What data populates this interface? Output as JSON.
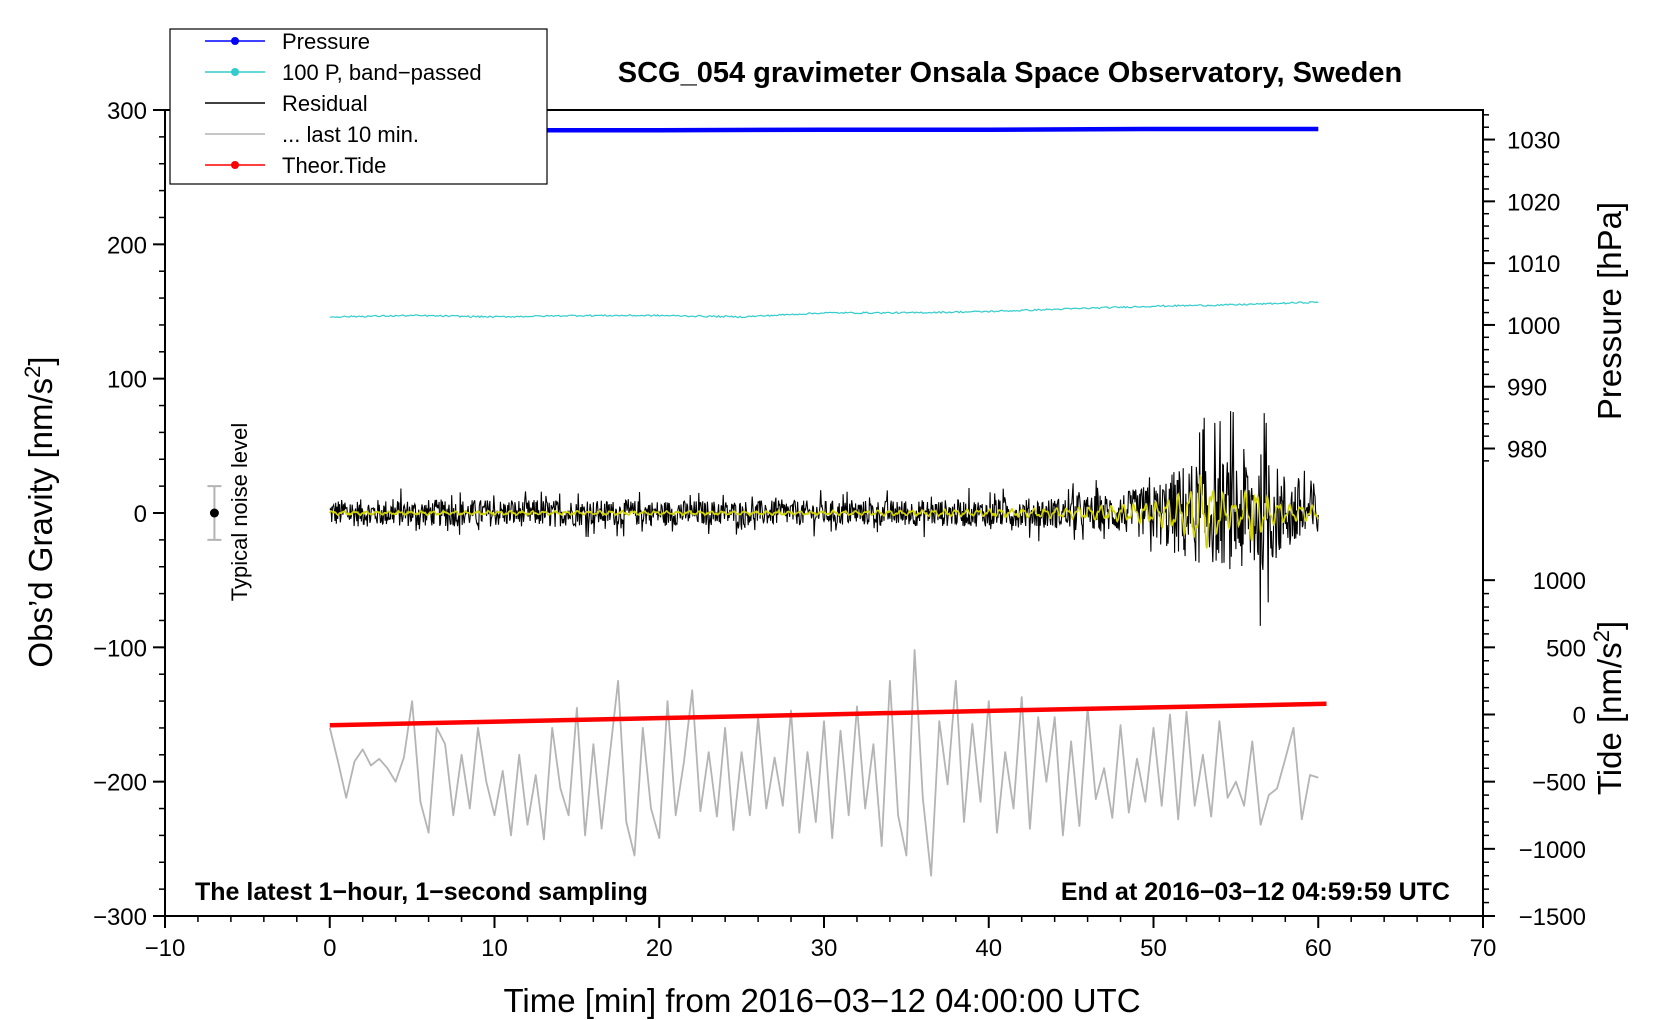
{
  "chart_data": {
    "type": "line",
    "title": "SCG_054 gravimeter Onsala Space Observatory, Sweden",
    "xlabel": "Time [min] from 2016−03−12 04:00:00 UTC",
    "ylabel_main": "Obs’d Gravity [nm/s",
    "ylabel_pressure": "Pressure [hPa]",
    "ylabel_tide": "Tide [nm/s",
    "unit_superscript": "2",
    "unit_close": "]",
    "xlim": [
      -10,
      70
    ],
    "ylim": [
      -300,
      300
    ],
    "x_ticks": [
      -10,
      0,
      10,
      20,
      30,
      40,
      50,
      60,
      70
    ],
    "x_tick_labels": [
      "−10",
      "0",
      "10",
      "20",
      "30",
      "40",
      "50",
      "60",
      "70"
    ],
    "y_ticks": [
      -300,
      -200,
      -100,
      0,
      100,
      200,
      300
    ],
    "y_tick_labels": [
      "−300",
      "−200",
      "−100",
      "0",
      "100",
      "200",
      "300"
    ],
    "pressure_axis": {
      "ticks": [
        980,
        990,
        1000,
        1010,
        1020,
        1030
      ],
      "tick_labels": [
        "980",
        "990",
        "1000",
        "1010",
        "1020",
        "1030"
      ],
      "gravity_at_1000": 140,
      "gravity_per_hPa": 4.6
    },
    "tide_axis": {
      "ticks": [
        -1500,
        -1000,
        -500,
        0,
        500,
        1000
      ],
      "tick_labels": [
        "−1500",
        "−1000",
        "−500",
        "0",
        "500",
        "1000"
      ],
      "gravity_at_0": -150,
      "gravity_per_unit": 0.1
    },
    "legend": [
      {
        "label": "Pressure",
        "color": "#0000ff",
        "marker": true
      },
      {
        "label": "100 P, band−passed",
        "color": "#33cccc",
        "marker": true
      },
      {
        "label": "Residual",
        "color": "#000000",
        "marker": false
      },
      {
        "label": "... last 10 min.",
        "color": "#b4b4b4",
        "marker": false
      },
      {
        "label": "Theor.Tide",
        "color": "#ff0000",
        "marker": true
      }
    ],
    "annotations": {
      "left": "The latest 1−hour, 1−second sampling",
      "right": "End at 2016−03−12 04:59:59 UTC",
      "noise": "Typical noise level"
    },
    "noise_bar": {
      "x": -7,
      "center": 0,
      "half_range": 20
    },
    "series": [
      {
        "name": "Pressure",
        "color": "#0000ff",
        "x": [
          0,
          10,
          20,
          30,
          40,
          50,
          60
        ],
        "y": [
          1031.5,
          1031.5,
          1031.5,
          1031.6,
          1031.6,
          1031.7,
          1031.7
        ]
      },
      {
        "name": "100 P, band-passed",
        "color": "#33cccc",
        "x": [
          0,
          5,
          10,
          15,
          20,
          25,
          30,
          35,
          40,
          45,
          50,
          55,
          60
        ],
        "y": [
          146,
          147,
          146,
          147,
          147,
          146,
          149,
          149,
          150,
          152,
          154,
          155,
          157
        ]
      },
      {
        "name": "Residual",
        "color": "#000000",
        "x": [
          0,
          10,
          20,
          30,
          40,
          45,
          48,
          50,
          52,
          54,
          56,
          58,
          60
        ],
        "amplitude": [
          12,
          12,
          11,
          11,
          12,
          14,
          18,
          25,
          45,
          45,
          60,
          35,
          28
        ]
      },
      {
        "name": "Residual (smoothed)",
        "color": "#d4d400",
        "x": [
          0,
          10,
          20,
          30,
          40,
          45,
          50,
          52,
          53,
          54,
          55,
          56,
          57,
          58,
          60
        ],
        "amplitude": [
          1,
          1,
          1,
          1,
          2,
          3,
          6,
          12,
          22,
          12,
          6,
          16,
          8,
          5,
          4
        ]
      },
      {
        "name": "... last 10 min.",
        "color": "#b4b4b4",
        "x": [
          0,
          0.5,
          1,
          1.5,
          2,
          2.5,
          3,
          3.5,
          4,
          4.5,
          5,
          5.5,
          6,
          6.5,
          7,
          7.5,
          8,
          8.5,
          9,
          9.5,
          10,
          10.5,
          11,
          11.5,
          12,
          12.5,
          13,
          13.5,
          14,
          14.5,
          15,
          15.5,
          16,
          16.5,
          17,
          17.5,
          18,
          18.5,
          19,
          19.5,
          20,
          20.5,
          21,
          21.5,
          22,
          22.5,
          23,
          23.5,
          24,
          24.5,
          25,
          25.5,
          26,
          26.5,
          27,
          27.5,
          28,
          28.5,
          29,
          29.5,
          30,
          30.5,
          31,
          31.5,
          32,
          32.5,
          33,
          33.5,
          34,
          34.5,
          35,
          35.5,
          36,
          36.5,
          37,
          37.5,
          38,
          38.5,
          39,
          39.5,
          40,
          40.5,
          41,
          41.5,
          42,
          42.5,
          43,
          43.5,
          44,
          44.5,
          45,
          45.5,
          46,
          46.5,
          47,
          47.5,
          48,
          48.5,
          49,
          49.5,
          50,
          50.5,
          51,
          51.5,
          52,
          52.5,
          53,
          53.5,
          54,
          54.5,
          55,
          55.5,
          56,
          56.5,
          57,
          57.5,
          58,
          58.5,
          59,
          59.5,
          60
        ],
        "y": [
          -160,
          -185,
          -212,
          -185,
          -176,
          -188,
          -183,
          -190,
          -200,
          -182,
          -140,
          -215,
          -238,
          -160,
          -172,
          -225,
          -180,
          -220,
          -160,
          -200,
          -225,
          -192,
          -240,
          -180,
          -232,
          -195,
          -243,
          -160,
          -205,
          -225,
          -145,
          -240,
          -172,
          -235,
          -180,
          -125,
          -230,
          -255,
          -160,
          -220,
          -242,
          -140,
          -225,
          -185,
          -132,
          -222,
          -178,
          -226,
          -160,
          -236,
          -178,
          -225,
          -152,
          -220,
          -182,
          -218,
          -147,
          -238,
          -178,
          -230,
          -155,
          -242,
          -162,
          -225,
          -144,
          -220,
          -172,
          -248,
          -125,
          -225,
          -255,
          -102,
          -212,
          -270,
          -155,
          -202,
          -125,
          -230,
          -157,
          -215,
          -140,
          -238,
          -178,
          -220,
          -137,
          -235,
          -152,
          -200,
          -152,
          -240,
          -170,
          -233,
          -145,
          -213,
          -190,
          -227,
          -158,
          -223,
          -183,
          -215,
          -160,
          -218,
          -150,
          -228,
          -148,
          -218,
          -180,
          -226,
          -155,
          -212,
          -200,
          -218,
          -170,
          -232,
          -210,
          -205,
          -183,
          -160,
          -228,
          -195,
          -197
        ]
      },
      {
        "name": "Theor.Tide",
        "color": "#ff0000",
        "x": [
          0,
          15,
          30,
          45,
          60.5
        ],
        "y": [
          -158,
          -154,
          -150,
          -146,
          -142
        ]
      }
    ]
  }
}
